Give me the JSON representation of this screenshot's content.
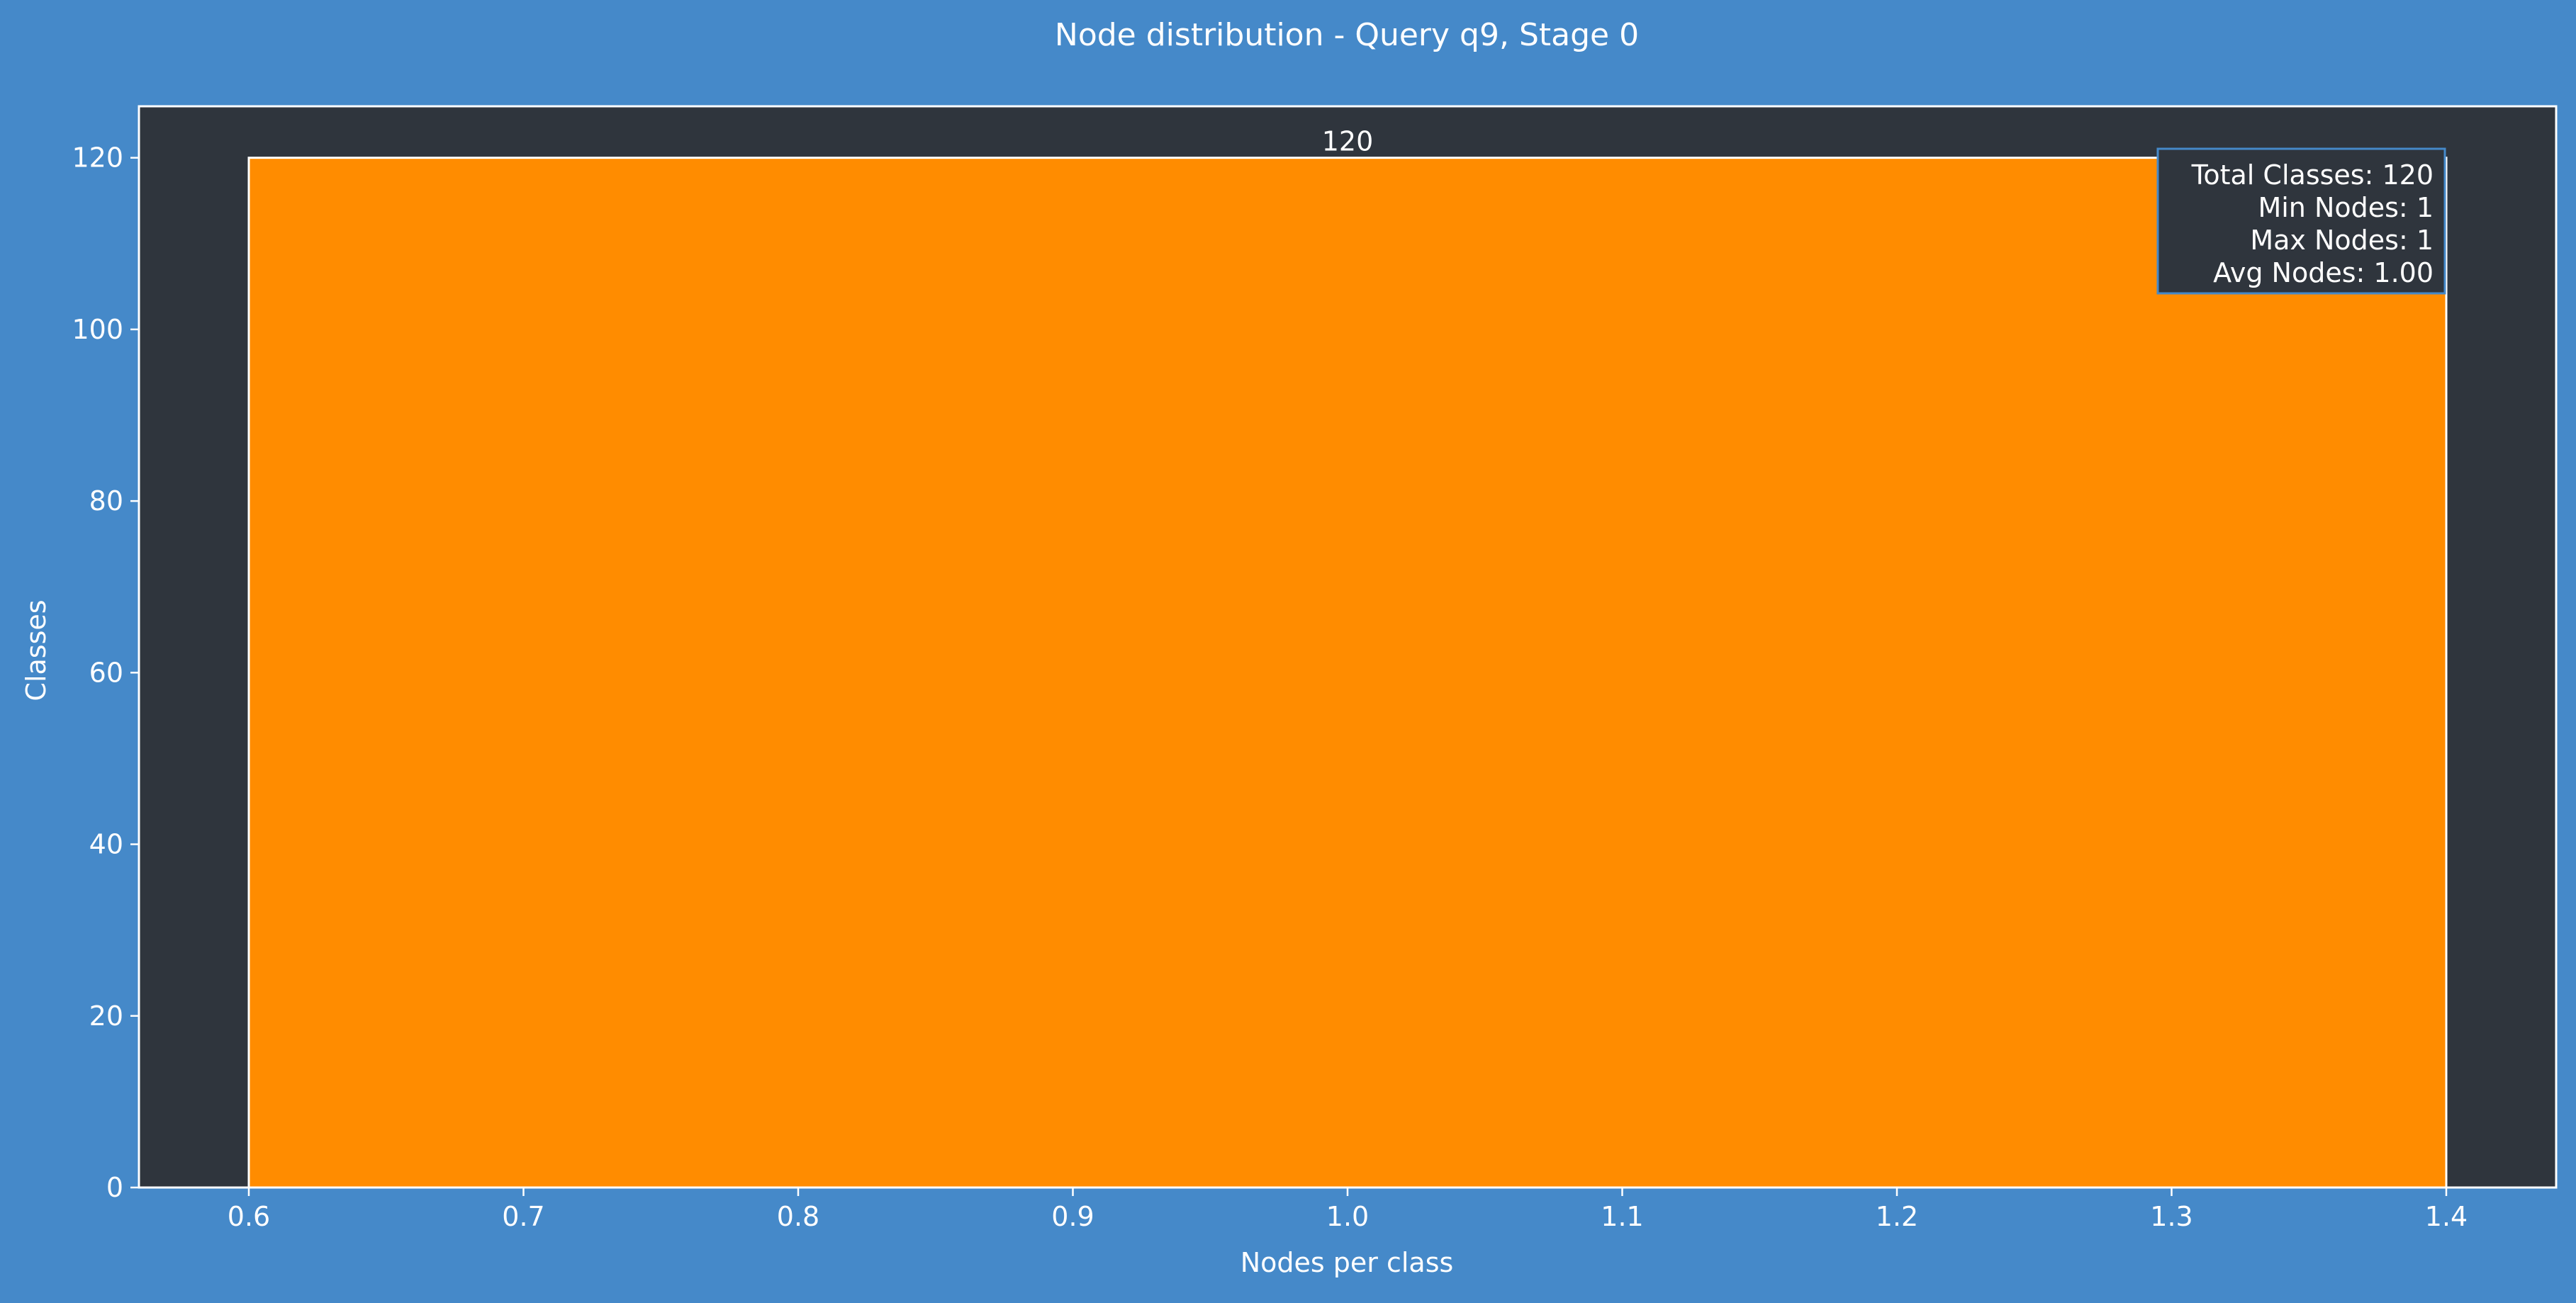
{
  "chart_data": {
    "type": "bar",
    "title": "Node distribution - Query q9, Stage 0",
    "xlabel": "Nodes per class",
    "ylabel": "Classes",
    "bars": [
      {
        "x_start": 0.6,
        "x_end": 1.4,
        "value": 120,
        "label": "120"
      }
    ],
    "xlim": [
      0.56,
      1.44
    ],
    "ylim": [
      0,
      126
    ],
    "xticks": [
      "0.6",
      "0.7",
      "0.8",
      "0.9",
      "1.0",
      "1.1",
      "1.2",
      "1.3",
      "1.4"
    ],
    "yticks": [
      "0",
      "20",
      "40",
      "60",
      "80",
      "100",
      "120"
    ],
    "grid": false,
    "stats_box": {
      "placement": "top-right",
      "lines": [
        "Total Classes: 120",
        "Min Nodes: 1",
        "Max Nodes: 1",
        "Avg Nodes: 1.00"
      ]
    }
  },
  "colors": {
    "figure_bg": "#4589c9",
    "plot_bg": "#2f353d",
    "bar": "#ff8c00",
    "bar_edge": "#ffffff",
    "text": "#ffffff",
    "stats_box_border": "#4589c9",
    "stats_box_bg": "#2f353d"
  }
}
